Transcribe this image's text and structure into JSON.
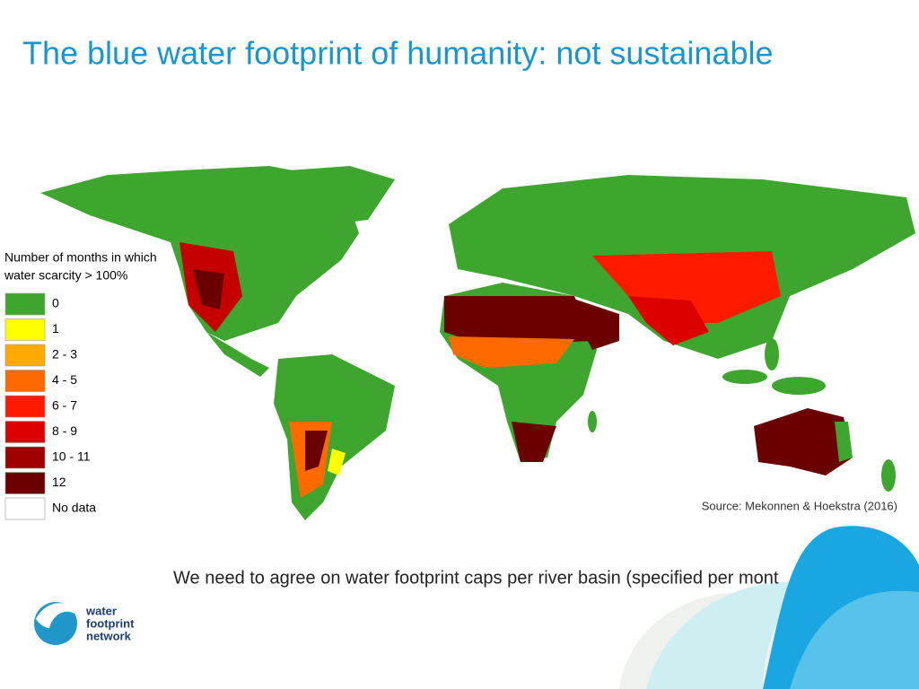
{
  "header": {
    "title": "The blue water footprint of humanity: not sustainable"
  },
  "legend": {
    "title": [
      "Number of months in which",
      "water scarcity > 100%"
    ],
    "items": [
      {
        "label": "0",
        "color": "#3ea62e"
      },
      {
        "label": "1",
        "color": "#ffff00"
      },
      {
        "label": "2 - 3",
        "color": "#ffaa00"
      },
      {
        "label": "4 - 5",
        "color": "#ff6a00"
      },
      {
        "label": "6 - 7",
        "color": "#ff1a00"
      },
      {
        "label": "8 - 9",
        "color": "#dd0000"
      },
      {
        "label": "10 - 11",
        "color": "#a00000"
      },
      {
        "label": "12",
        "color": "#6a0000"
      },
      {
        "label": "No data",
        "color": "#ffffff"
      }
    ]
  },
  "source": "Source: Mekonnen & Hoekstra (2016)",
  "caption": "We need to agree on water footprint caps per river basin (specified per mont",
  "logo": [
    "water",
    "footprint",
    "network"
  ]
}
